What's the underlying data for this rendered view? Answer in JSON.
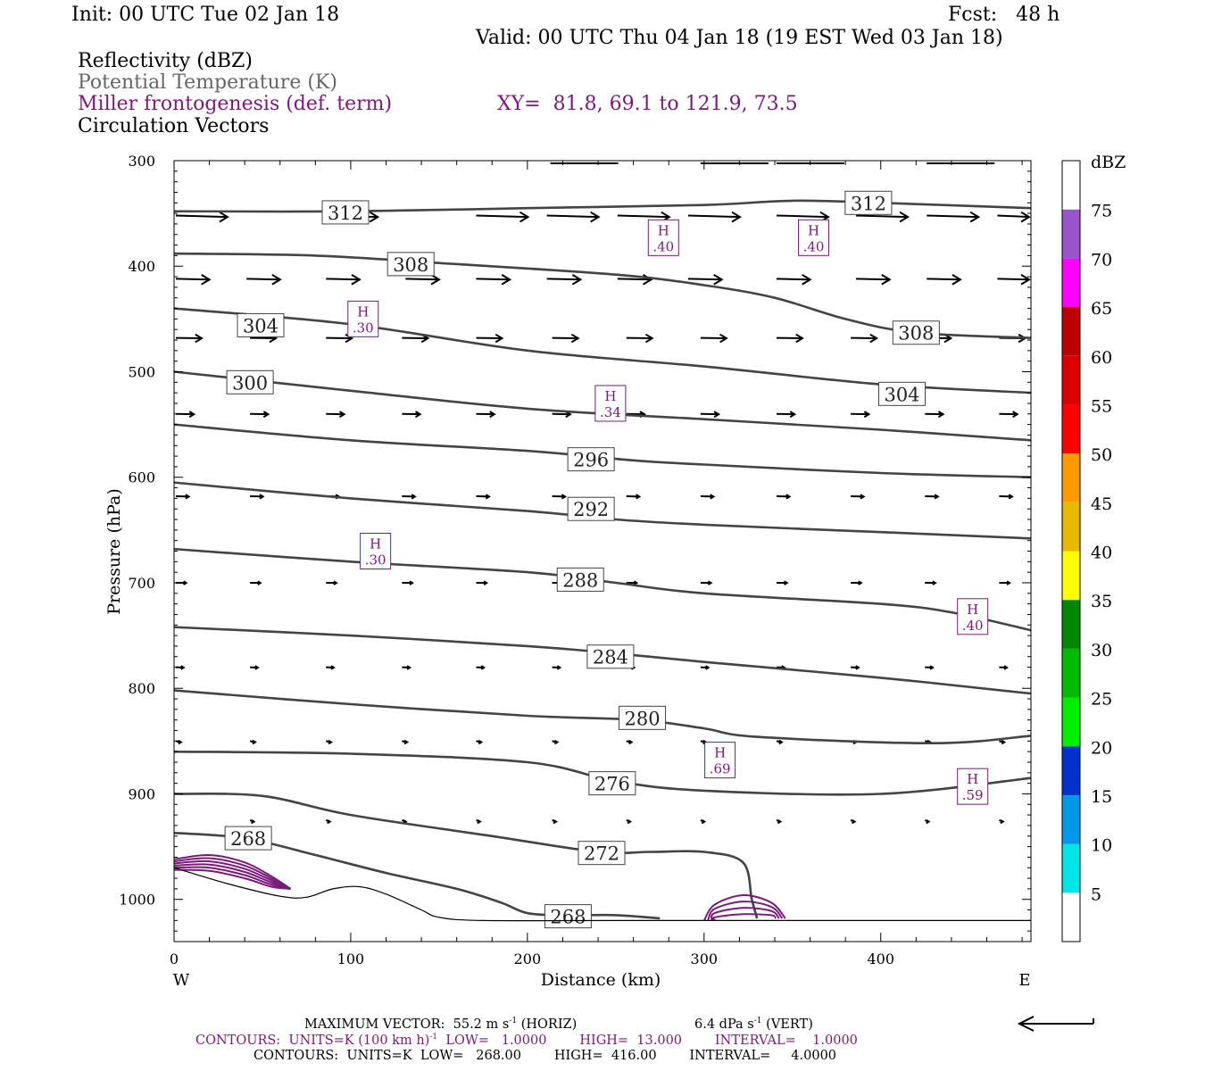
{
  "header": {
    "init": "Init: 00 UTC Tue 02 Jan 18",
    "fcst": "Fcst:   48 h",
    "valid": "Valid: 00 UTC Thu 04 Jan 18 (19 EST Wed 03 Jan 18)",
    "fields": [
      {
        "text": "Reflectivity (dBZ)",
        "color": "#000000"
      },
      {
        "text": "Potential Temperature (K)",
        "color": "#666666"
      },
      {
        "text": "Miller frontogenesis (def. term)",
        "color": "#7a1a7a"
      },
      {
        "text": "Circulation Vectors",
        "color": "#000000"
      }
    ],
    "xy": "XY=  81.8, 69.1 to 121.9, 73.5"
  },
  "chart_data": {
    "type": "cross-section",
    "xlabel": "Distance (km)",
    "ylabel": "Pressure (hPa)",
    "xlim": [
      0,
      485
    ],
    "ylim": [
      1040,
      300
    ],
    "x_ticks": [
      0,
      100,
      200,
      300,
      400
    ],
    "y_ticks": [
      300,
      400,
      500,
      600,
      700,
      800,
      900,
      1000
    ],
    "x_end_labels": {
      "left": "W",
      "right": "E"
    },
    "theta_contours": [
      {
        "value": 312,
        "points": [
          [
            0,
            348
          ],
          [
            100,
            348
          ],
          [
            200,
            345
          ],
          [
            300,
            342
          ],
          [
            350,
            338
          ],
          [
            400,
            340
          ],
          [
            485,
            345
          ]
        ],
        "labels": [
          [
            97,
            349
          ],
          [
            393,
            340
          ]
        ]
      },
      {
        "value": 308,
        "points": [
          [
            0,
            388
          ],
          [
            80,
            390
          ],
          [
            150,
            397
          ],
          [
            250,
            408
          ],
          [
            300,
            418
          ],
          [
            340,
            430
          ],
          [
            380,
            450
          ],
          [
            420,
            463
          ],
          [
            485,
            468
          ]
        ],
        "labels": [
          [
            134,
            398
          ],
          [
            420,
            463
          ]
        ]
      },
      {
        "value": 304,
        "points": [
          [
            0,
            440
          ],
          [
            100,
            455
          ],
          [
            200,
            480
          ],
          [
            300,
            495
          ],
          [
            400,
            512
          ],
          [
            485,
            520
          ]
        ],
        "labels": [
          [
            49,
            456
          ],
          [
            412,
            521
          ]
        ]
      },
      {
        "value": 300,
        "points": [
          [
            0,
            500
          ],
          [
            100,
            518
          ],
          [
            200,
            535
          ],
          [
            300,
            545
          ],
          [
            400,
            555
          ],
          [
            485,
            565
          ]
        ],
        "labels": [
          [
            43,
            510
          ]
        ]
      },
      {
        "value": 296,
        "points": [
          [
            0,
            550
          ],
          [
            100,
            565
          ],
          [
            200,
            575
          ],
          [
            260,
            584
          ],
          [
            300,
            588
          ],
          [
            400,
            596
          ],
          [
            485,
            600
          ]
        ],
        "labels": [
          [
            236,
            583
          ]
        ]
      },
      {
        "value": 292,
        "points": [
          [
            0,
            605
          ],
          [
            100,
            620
          ],
          [
            200,
            632
          ],
          [
            250,
            640
          ],
          [
            300,
            645
          ],
          [
            400,
            652
          ],
          [
            485,
            658
          ]
        ],
        "labels": [
          [
            236,
            630
          ]
        ]
      },
      {
        "value": 288,
        "points": [
          [
            0,
            668
          ],
          [
            100,
            680
          ],
          [
            200,
            690
          ],
          [
            250,
            700
          ],
          [
            300,
            710
          ],
          [
            400,
            720
          ],
          [
            440,
            728
          ],
          [
            485,
            745
          ]
        ],
        "labels": [
          [
            230,
            697
          ]
        ]
      },
      {
        "value": 284,
        "points": [
          [
            0,
            742
          ],
          [
            100,
            750
          ],
          [
            200,
            760
          ],
          [
            250,
            767
          ],
          [
            300,
            775
          ],
          [
            400,
            790
          ],
          [
            485,
            805
          ]
        ],
        "labels": [
          [
            247,
            770
          ]
        ]
      },
      {
        "value": 280,
        "points": [
          [
            0,
            802
          ],
          [
            100,
            815
          ],
          [
            200,
            826
          ],
          [
            263,
            830
          ],
          [
            300,
            838
          ],
          [
            330,
            846
          ],
          [
            430,
            852
          ],
          [
            485,
            845
          ]
        ],
        "labels": [
          [
            265,
            828
          ]
        ]
      },
      {
        "value": 276,
        "points": [
          [
            0,
            860
          ],
          [
            100,
            862
          ],
          [
            200,
            870
          ],
          [
            250,
            888
          ],
          [
            300,
            897
          ],
          [
            400,
            900
          ],
          [
            485,
            885
          ]
        ],
        "labels": [
          [
            248,
            890
          ]
        ]
      },
      {
        "value": 272,
        "points": [
          [
            0,
            900
          ],
          [
            50,
            902
          ],
          [
            100,
            920
          ],
          [
            180,
            940
          ],
          [
            240,
            955
          ],
          [
            270,
            955
          ],
          [
            300,
            955
          ],
          [
            322,
            965
          ],
          [
            327,
            1000
          ],
          [
            330,
            1018
          ]
        ],
        "labels": [
          [
            242,
            956
          ]
        ]
      },
      {
        "value": 268,
        "points": [
          [
            0,
            937
          ],
          [
            40,
            942
          ],
          [
            80,
            958
          ],
          [
            120,
            975
          ],
          [
            160,
            990
          ],
          [
            185,
            1003
          ],
          [
            200,
            1013
          ],
          [
            220,
            1015
          ],
          [
            250,
            1015
          ],
          [
            275,
            1018
          ]
        ],
        "labels": [
          [
            42,
            942
          ],
          [
            223,
            1016
          ]
        ]
      }
    ],
    "frontogenesis_highs": [
      {
        "label": "H",
        "value": ".40",
        "x": 277,
        "p": 373
      },
      {
        "label": "H",
        "value": ".40",
        "x": 362,
        "p": 373
      },
      {
        "label": "H",
        "value": ".30",
        "x": 107,
        "p": 450
      },
      {
        "label": "H",
        "value": ".34",
        "x": 247,
        "p": 530
      },
      {
        "label": "H",
        "value": ".30",
        "x": 114,
        "p": 670
      },
      {
        "label": "H",
        "value": ".40",
        "x": 452,
        "p": 732
      },
      {
        "label": "H",
        "value": ".69",
        "x": 309,
        "p": 868
      },
      {
        "label": "H",
        "value": ".59",
        "x": 452,
        "p": 893
      }
    ],
    "vectors": {
      "scale_note": "maximum vector 55.2 m/s horiz, 6.4 dPa/s vert",
      "rows": [
        {
          "p": 352,
          "xs": [
            0,
            85,
            170,
            210,
            250,
            290,
            340,
            385,
            425,
            465
          ],
          "u": 40,
          "w": 0.4
        },
        {
          "p": 412,
          "xs": [
            0,
            40,
            85,
            130,
            170,
            210,
            250,
            290,
            340,
            385,
            425,
            465
          ],
          "u": 26,
          "w": 0.2
        },
        {
          "p": 468,
          "xs": [
            0,
            42,
            85,
            128,
            170,
            213,
            255,
            297,
            340,
            382,
            424,
            466
          ],
          "u": 20,
          "w": 0.1
        },
        {
          "p": 540,
          "xs": [
            0,
            42,
            85,
            128,
            170,
            213,
            255,
            297,
            340,
            382,
            424,
            466
          ],
          "u": 14,
          "w": 0.1
        },
        {
          "p": 618,
          "xs": [
            0,
            42,
            85,
            128,
            170,
            213,
            255,
            297,
            340,
            382,
            424,
            466
          ],
          "u": 10,
          "w": 0.1
        },
        {
          "p": 700,
          "xs": [
            0,
            42,
            85,
            128,
            170,
            213,
            255,
            297,
            340,
            382,
            424,
            466
          ],
          "u": 8,
          "w": 0.05
        },
        {
          "p": 780,
          "xs": [
            0,
            42,
            85,
            128,
            170,
            213,
            255,
            297,
            340,
            382,
            424,
            466
          ],
          "u": 6,
          "w": 0.1
        },
        {
          "p": 850,
          "xs": [
            0,
            42,
            85,
            128,
            170,
            213,
            255,
            297,
            340,
            382,
            424,
            466
          ],
          "u": 4,
          "w": 0.3
        },
        {
          "p": 925,
          "xs": [
            42,
            85,
            128,
            170,
            213,
            255,
            297,
            340,
            382,
            424,
            466
          ],
          "u": 3,
          "w": 0.4
        }
      ]
    },
    "dbz_colorbar": {
      "unit": "dBZ",
      "levels": [
        "5",
        "10",
        "15",
        "20",
        "25",
        "30",
        "35",
        "40",
        "45",
        "50",
        "55",
        "60",
        "65",
        "70",
        "75"
      ],
      "colors": [
        "#ffffff",
        "#00e5e5",
        "#0099e6",
        "#0033cc",
        "#00ee00",
        "#00bb00",
        "#008800",
        "#ffff00",
        "#e6b800",
        "#ff9900",
        "#ff0000",
        "#dd0000",
        "#bb0000",
        "#ff00ff",
        "#9955cc",
        "#ffffff"
      ]
    }
  },
  "footer": {
    "max_vector": "MAXIMUM VECTOR:  55.2 m s",
    "max_vector_sup": "-1",
    "max_vector_h": " (HORIZ)",
    "vert": "6.4 dPa s",
    "vert_sup": "-1",
    "vert_tail": " (VERT)",
    "contours1_a": "CONTOURS:  UNITS=K (100 km h)",
    "contours1_sup": "-1",
    "contours1_b": "  LOW=   1.0000        HIGH=  13.000        INTERVAL=    1.0000",
    "contours2": "CONTOURS:  UNITS=K  LOW=   268.00        HIGH=  416.00        INTERVAL=     4.0000",
    "purple": "#7a1a7a"
  }
}
